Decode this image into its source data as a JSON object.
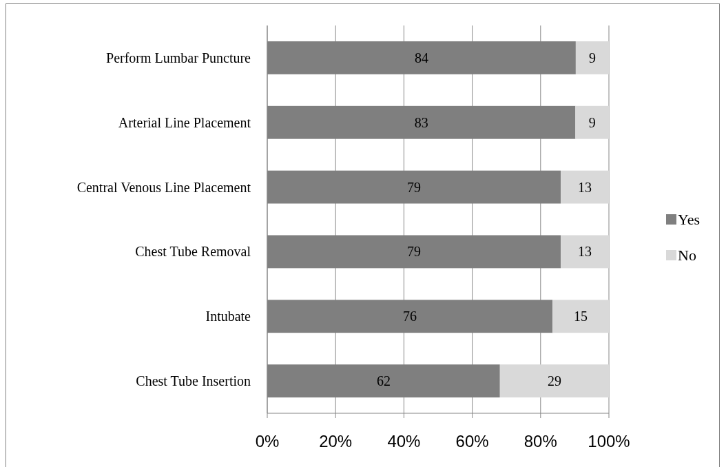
{
  "chart_data": {
    "type": "bar",
    "orientation": "horizontal",
    "stacked": true,
    "categories": [
      "Perform Lumbar Puncture",
      "Arterial Line Placement",
      "Central Venous Line Placement",
      "Chest Tube Removal",
      "Intubate",
      "Chest Tube Insertion"
    ],
    "series": [
      {
        "name": "Yes",
        "color": "#7f7f7f",
        "values": [
          90.3,
          90.2,
          85.9,
          85.9,
          83.5,
          68.1
        ]
      },
      {
        "name": "No",
        "color": "#d9d9d9",
        "values": [
          9.7,
          9.8,
          14.1,
          14.1,
          16.5,
          31.9
        ]
      }
    ],
    "annotations": [
      "84",
      "9",
      "83",
      "9",
      "79",
      "13",
      "79",
      "13",
      "76",
      "15",
      "62",
      "29"
    ],
    "xlim": [
      0,
      100
    ],
    "xticks": [
      {
        "value": 0,
        "label": "0%"
      },
      {
        "value": 20,
        "label": "20%"
      },
      {
        "value": 40,
        "label": "40%"
      },
      {
        "value": 60,
        "label": "60%"
      },
      {
        "value": 80,
        "label": "80%"
      },
      {
        "value": 100,
        "label": "100%"
      }
    ],
    "grid": "x",
    "legend": "right"
  }
}
